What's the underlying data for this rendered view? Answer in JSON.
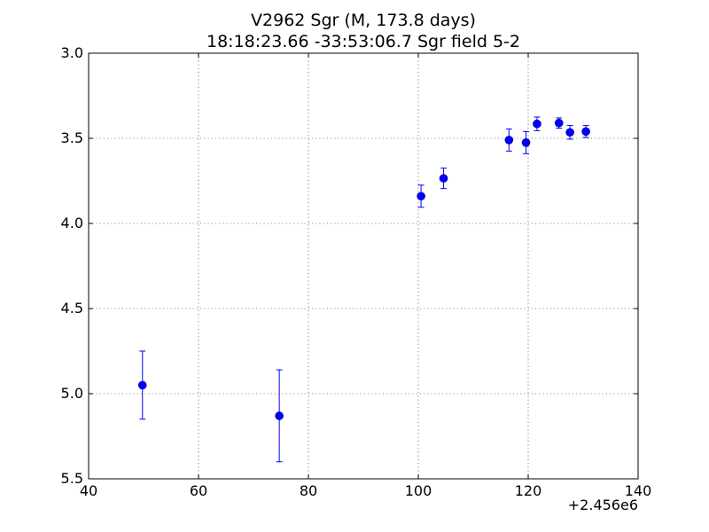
{
  "chart_data": {
    "type": "scatter",
    "title": "V2962 Sgr  (M, 173.8 days)",
    "subtitle": "18:18:23.66 -33:53:06.7 Sgr field 5-2",
    "xlabel": "",
    "ylabel": "",
    "x_offset_label": "+2.456e6",
    "xlim": [
      40,
      140
    ],
    "ylim": [
      5.5,
      3.0
    ],
    "y_inverted": true,
    "x_ticks": [
      40,
      60,
      80,
      100,
      120,
      140
    ],
    "x_tick_labels": [
      "40",
      "60",
      "80",
      "100",
      "120",
      "140"
    ],
    "y_ticks": [
      3.0,
      3.5,
      4.0,
      4.5,
      5.0,
      5.5
    ],
    "y_tick_labels": [
      "3.0",
      "3.5",
      "4.0",
      "4.5",
      "5.0",
      "5.5"
    ],
    "grid": true,
    "color": "#0000ff",
    "points": [
      {
        "x": 49.8,
        "y": 4.95,
        "err": 0.2
      },
      {
        "x": 74.7,
        "y": 5.13,
        "err": 0.27
      },
      {
        "x": 100.5,
        "y": 3.84,
        "err": 0.065
      },
      {
        "x": 104.6,
        "y": 3.735,
        "err": 0.06
      },
      {
        "x": 116.5,
        "y": 3.51,
        "err": 0.065
      },
      {
        "x": 119.6,
        "y": 3.525,
        "err": 0.065
      },
      {
        "x": 121.6,
        "y": 3.415,
        "err": 0.04
      },
      {
        "x": 125.6,
        "y": 3.41,
        "err": 0.03
      },
      {
        "x": 127.6,
        "y": 3.465,
        "err": 0.04
      },
      {
        "x": 130.5,
        "y": 3.46,
        "err": 0.035
      }
    ]
  }
}
